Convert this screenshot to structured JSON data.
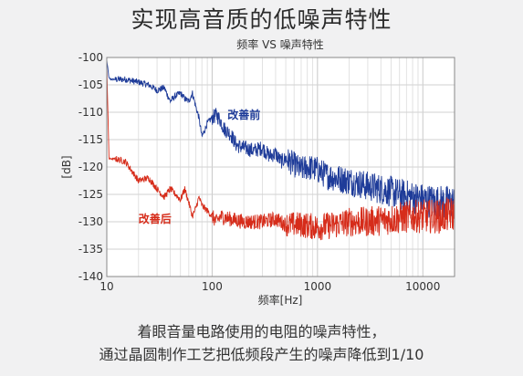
{
  "headline": "实现高音质的低噪声特性",
  "caption_lines": [
    "着眼音量电路使用的电阻的噪声特性，",
    "通过晶圆制作工艺把低频段产生的噪声降低到1/10"
  ],
  "chart_data": {
    "type": "line",
    "title": "频率 VS 噪声特性",
    "xlabel": "频率[Hz]",
    "ylabel": "[dB]",
    "x_scale": "log",
    "xlim": [
      10,
      20000
    ],
    "ylim": [
      -140,
      -100
    ],
    "x_ticks": [
      10,
      100,
      1000,
      10000
    ],
    "x_tick_labels": [
      "10",
      "100",
      "1000",
      "10000"
    ],
    "y_ticks": [
      -100,
      -105,
      -110,
      -115,
      -120,
      -125,
      -130,
      -135,
      -140
    ],
    "y_tick_labels": [
      "-100",
      "-105",
      "-110",
      "-115",
      "-120",
      "-125",
      "-130",
      "-135",
      "-140"
    ],
    "grid": true,
    "series": [
      {
        "name": "改善前",
        "color": "#1f3c99",
        "x": [
          10,
          10.5,
          11,
          12,
          15,
          20,
          25,
          30,
          35,
          40,
          45,
          50,
          55,
          60,
          65,
          70,
          75,
          80,
          90,
          100,
          110,
          120,
          130,
          150,
          170,
          200,
          250,
          300,
          350,
          400,
          450,
          500,
          600,
          700,
          800,
          1000,
          1200,
          1500,
          2000,
          2500,
          3000,
          4000,
          5000,
          6000,
          8000,
          10000,
          13000,
          16000,
          20000
        ],
        "y": [
          -100.5,
          -103.8,
          -104,
          -104,
          -104,
          -104.5,
          -105,
          -106,
          -105.5,
          -108,
          -107,
          -106.5,
          -107.5,
          -108,
          -106.5,
          -109,
          -111,
          -114.5,
          -112,
          -111,
          -110.5,
          -111.5,
          -113,
          -114,
          -116,
          -116.5,
          -117,
          -116.5,
          -118,
          -117.5,
          -119,
          -118.5,
          -119.5,
          -120.5,
          -120,
          -120.5,
          -121.5,
          -122,
          -122.5,
          -123,
          -123.5,
          -124,
          -124.5,
          -125,
          -125.5,
          -126,
          -126.3,
          -126.5,
          -126.5
        ]
      },
      {
        "name": "改善后",
        "color": "#d62c1a",
        "x": [
          10,
          10.5,
          11,
          12,
          15,
          20,
          25,
          30,
          35,
          40,
          45,
          50,
          55,
          60,
          65,
          70,
          75,
          80,
          90,
          100,
          110,
          120,
          150,
          200,
          250,
          300,
          400,
          500,
          700,
          1000,
          1500,
          2000,
          3000,
          5000,
          8000,
          10000,
          15000,
          20000
        ],
        "y": [
          -101.5,
          -118.5,
          -118.5,
          -118.5,
          -119,
          -122.5,
          -122,
          -124,
          -125.5,
          -124,
          -125,
          -126,
          -124,
          -126.5,
          -129,
          -127.5,
          -125.5,
          -127,
          -128,
          -129,
          -130,
          -129,
          -129.5,
          -130,
          -130,
          -130,
          -129.5,
          -130.5,
          -130.5,
          -131,
          -130.5,
          -130,
          -130,
          -129.5,
          -129,
          -129,
          -129,
          -128.5
        ]
      }
    ],
    "annotations": [
      {
        "text": "改善前",
        "x": 140,
        "y": -110.5,
        "color": "#1f3c99"
      },
      {
        "text": "改善后",
        "x": 20,
        "y": -129.5,
        "color": "#d62c1a"
      }
    ]
  }
}
